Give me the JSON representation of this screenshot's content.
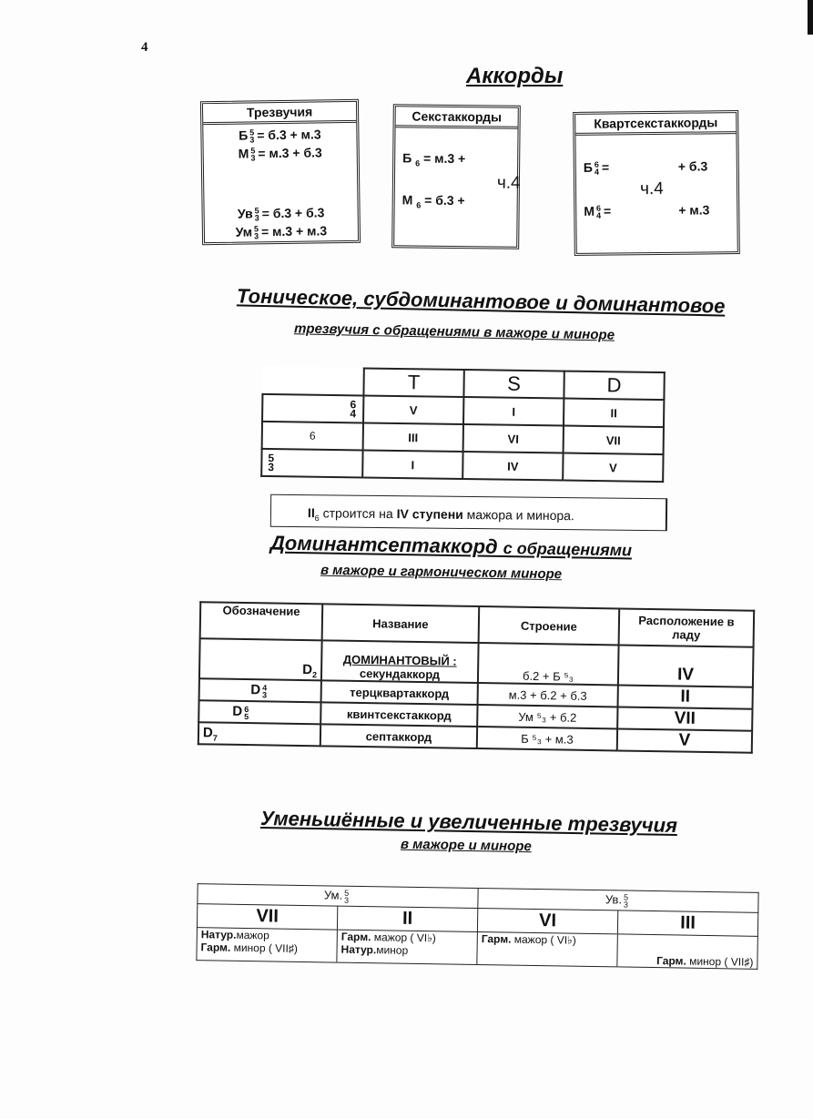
{
  "page_number": "4",
  "title": "Аккорды",
  "boxes": {
    "triads": {
      "header": "Трезвучия",
      "rows": [
        {
          "base": "Б",
          "sup": "5",
          "sub": "3",
          "rest": "= б.3 + м.3"
        },
        {
          "base": "М",
          "sup": "5",
          "sub": "3",
          "rest": "= м.3 + б.3"
        },
        {
          "base": "Ув",
          "sup": "5",
          "sub": "3",
          "rest": "= б.3 + б.3"
        },
        {
          "base": "Ум",
          "sup": "5",
          "sub": "3",
          "rest": "= м.3 + м.3"
        }
      ]
    },
    "sixth": {
      "header": "Секстаккорды",
      "row1": "Б",
      "row1_sub": "6",
      "row1_rest": "= м.3 +",
      "row2": "М",
      "row2_sub": "6",
      "row2_rest": "= б.3 +",
      "common": "ч.4"
    },
    "quartsixth": {
      "header": "Квартсекстаккорды",
      "row1": "Б",
      "row1_sup": "6",
      "row1_sub": "4",
      "row1_eq": "=",
      "row1_rest": "+ б.3",
      "row2": "М",
      "row2_sup": "6",
      "row2_sub": "4",
      "row2_eq": "=",
      "row2_rest": "+ м.3",
      "common": "ч.4"
    }
  },
  "section2": {
    "title": "Тоническое, субдоминантовое и доминантовое",
    "subtitle": "трезвучия с обращениями в мажоре и миноре"
  },
  "tsd_table": {
    "headers": [
      "T",
      "S",
      "D"
    ],
    "rows": [
      {
        "sup": "6",
        "sub": "4",
        "label": "",
        "cells": [
          "V",
          "I",
          "II"
        ]
      },
      {
        "sup": "",
        "sub": "",
        "label": "6",
        "cells": [
          "III",
          "VI",
          "VII"
        ]
      },
      {
        "sup": "5",
        "sub": "3",
        "label": "",
        "cells": [
          "I",
          "IV",
          "V"
        ]
      }
    ]
  },
  "note": {
    "prefix": "II",
    "prefix_sub": "6",
    "text1": "строится на",
    "bold": "IV ступени",
    "text2": "мажора и минора."
  },
  "section3": {
    "title_main": "Доминантсептаккорд",
    "title_rest": "с обращениями",
    "subtitle": "в мажоре и гармоническом миноре"
  },
  "d7_table": {
    "headers": [
      "Обозначение",
      "Название",
      "Строение",
      "Расположение в ладу"
    ],
    "group_label": "ДОМИНАНТОВЫЙ :",
    "rows": [
      {
        "sym": "D",
        "sup": "",
        "sub": "2",
        "name": "секундаккорд",
        "structure": "б.2 + Б ⁵₃",
        "place": "IV"
      },
      {
        "sym": "D",
        "sup": "4",
        "sub": "3",
        "name": "терцквартаккорд",
        "structure": "м.3 + б.2 + б.3",
        "place": "II"
      },
      {
        "sym": "D",
        "sup": "6",
        "sub": "5",
        "name": "квинтсекстаккорд",
        "structure": "Ум ⁵₃ + б.2",
        "place": "VII"
      },
      {
        "sym": "D",
        "sup": "",
        "sub": "7",
        "name": "септаккорд",
        "structure": "Б ⁵₃ + м.3",
        "place": "V"
      }
    ]
  },
  "section4": {
    "title": "Уменьшённые и увеличенные трезвучия",
    "subtitle": "в мажоре и миноре"
  },
  "dim_aug_table": {
    "groups": [
      {
        "label": "Ум.",
        "sup": "5",
        "sub": "3"
      },
      {
        "label": "Ув.",
        "sup": "5",
        "sub": "3"
      }
    ],
    "degrees": [
      "VII",
      "II",
      "VI",
      "III"
    ],
    "cells": [
      [
        {
          "b": "Натур.",
          "t": "мажор"
        },
        {
          "b": "Гарм.",
          "t": " минор ( VII♯)"
        }
      ],
      [
        {
          "b": "Гарм.",
          "t": " мажор ( VI♭)"
        },
        {
          "b": "Натур.",
          "t": "минор"
        }
      ],
      [
        {
          "b": "Гарм.",
          "t": " мажор ( VI♭)"
        }
      ],
      [
        {
          "b": "Гарм.",
          "t": " минор ( VII♯)"
        }
      ]
    ]
  }
}
